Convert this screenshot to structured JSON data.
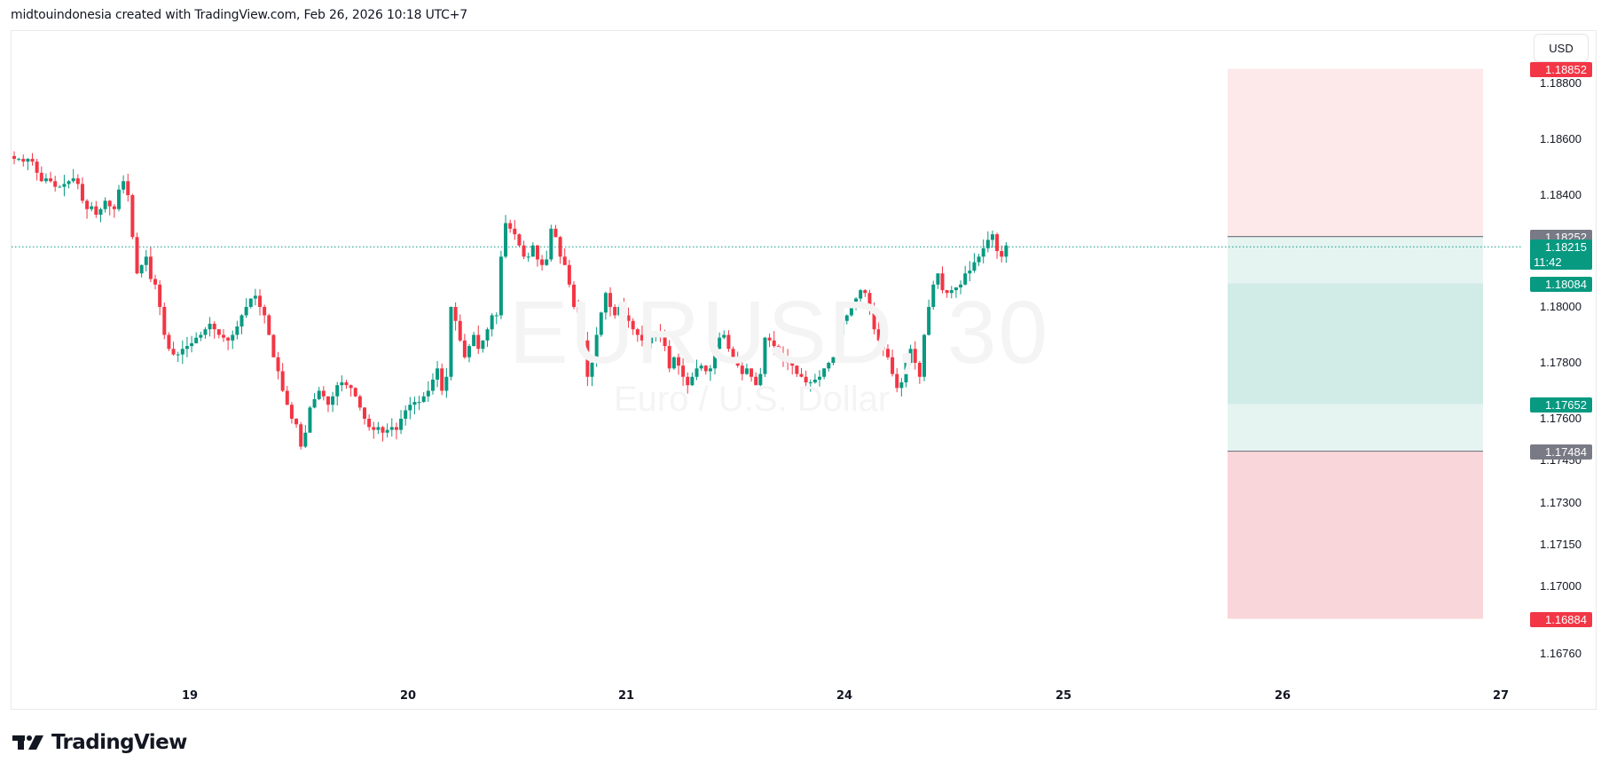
{
  "header": {
    "text": "midtouindonesia created with TradingView.com, Feb 26, 2026 10:18 UTC+7"
  },
  "symbol_watermark": {
    "symbol": "EURUSD, 30",
    "description": "Euro / U.S. Dollar"
  },
  "currency_button": {
    "label": "USD"
  },
  "logo": {
    "text": "TradingView",
    "icon": "tradingview-logo-icon"
  },
  "colors": {
    "up": "#089981",
    "down": "#f23645",
    "target_zone_light": "#e5f4f1",
    "target_zone_dark": "#d1ece7",
    "stop_zone_light": "#fde9ea",
    "stop_zone_dark": "#f9d6d9",
    "level_gray": "#787b86",
    "current_price_line": "#089981"
  },
  "price_axis": {
    "ticks": [
      "1.18800",
      "1.18600",
      "1.18400",
      "1.18000",
      "1.17800",
      "1.17600",
      "1.17450",
      "1.17300",
      "1.17150",
      "1.17000",
      "1.16760"
    ],
    "tags": [
      {
        "name": "upper-stop-tag",
        "value": "1.18852",
        "color": "#f23645"
      },
      {
        "name": "upper-entry-tag",
        "value": "1.18252",
        "color": "#787b86"
      },
      {
        "name": "current-price-tag",
        "value": "1.18215",
        "countdown": "11:42",
        "color": "#089981"
      },
      {
        "name": "upper-target-tag",
        "value": "1.18084",
        "color": "#089981"
      },
      {
        "name": "lower-target-tag",
        "value": "1.17652",
        "color": "#089981"
      },
      {
        "name": "lower-entry-tag",
        "value": "1.17484",
        "color": "#787b86"
      },
      {
        "name": "lower-stop-tag",
        "value": "1.16884",
        "color": "#f23645"
      }
    ]
  },
  "time_axis": {
    "labels": [
      "19",
      "20",
      "21",
      "24",
      "25",
      "26",
      "27"
    ]
  },
  "chart_data": {
    "type": "candlestick",
    "title": "EURUSD, 30",
    "subtitle": "Euro / U.S. Dollar",
    "xlabel": "",
    "ylabel": "USD",
    "ylim": [
      1.1668,
      1.1892
    ],
    "grid": false,
    "timeframe": "30m",
    "x_ticks": [
      "19",
      "20",
      "21",
      "24",
      "25",
      "26",
      "27"
    ],
    "current_price": 1.18215,
    "position_tool": {
      "upper_stop": 1.18852,
      "upper_entry": 1.18252,
      "upper_target": 1.18084,
      "lower_target": 1.17652,
      "lower_entry": 1.17484,
      "lower_stop": 1.16884
    },
    "close_path": [
      1.1853,
      1.1853,
      1.1852,
      1.1853,
      1.1852,
      1.1848,
      1.1845,
      1.1846,
      1.1845,
      1.1843,
      1.1843,
      1.1844,
      1.1845,
      1.1846,
      1.1844,
      1.1838,
      1.1835,
      1.1836,
      1.1833,
      1.1835,
      1.1838,
      1.1836,
      1.1835,
      1.1842,
      1.1845,
      1.184,
      1.1825,
      1.1812,
      1.1815,
      1.1818,
      1.181,
      1.1808,
      1.18,
      1.179,
      1.1785,
      1.1783,
      1.1783,
      1.1785,
      1.1786,
      1.1787,
      1.1789,
      1.179,
      1.1792,
      1.1794,
      1.1792,
      1.179,
      1.1789,
      1.1788,
      1.179,
      1.1793,
      1.1797,
      1.18,
      1.1803,
      1.1804,
      1.18,
      1.1797,
      1.179,
      1.1782,
      1.1777,
      1.177,
      1.1765,
      1.176,
      1.1758,
      1.175,
      1.1755,
      1.1764,
      1.1767,
      1.177,
      1.1768,
      1.1765,
      1.1768,
      1.1772,
      1.1773,
      1.1772,
      1.1771,
      1.1768,
      1.1764,
      1.176,
      1.1757,
      1.1756,
      1.1757,
      1.1755,
      1.1756,
      1.1757,
      1.1756,
      1.176,
      1.1763,
      1.1765,
      1.1766,
      1.1766,
      1.1768,
      1.177,
      1.1774,
      1.1778,
      1.177,
      1.1775,
      1.18,
      1.1795,
      1.1788,
      1.1782,
      1.1786,
      1.179,
      1.1785,
      1.1788,
      1.1792,
      1.1797,
      1.1797,
      1.1818,
      1.183,
      1.1828,
      1.1826,
      1.1822,
      1.1818,
      1.1818,
      1.1822,
      1.1817,
      1.1815,
      1.1817,
      1.1828,
      1.1825,
      1.1818,
      1.1815,
      1.1808,
      1.18,
      1.1798,
      1.1788,
      1.1775,
      1.178,
      1.179,
      1.1798,
      1.1805,
      1.18,
      1.1797,
      1.18,
      1.1797,
      1.1795,
      1.1792,
      1.179,
      1.1788,
      1.1787,
      1.1789,
      1.1791,
      1.179,
      1.1786,
      1.1778,
      1.1782,
      1.1779,
      1.1775,
      1.1772,
      1.1775,
      1.1778,
      1.1779,
      1.1777,
      1.1778,
      1.1785,
      1.1789,
      1.179,
      1.1785,
      1.1782,
      1.1779,
      1.1776,
      1.1778,
      1.1775,
      1.1772,
      1.1776,
      1.1789,
      1.1788,
      1.1786,
      1.1783,
      1.1782,
      1.178,
      1.1779,
      1.1776,
      1.1775,
      1.1773,
      1.1773,
      1.1774,
      1.1775,
      1.1778,
      1.178,
      1.1782,
      1.179,
      1.1795,
      1.1797,
      1.18,
      1.1803,
      1.1806,
      1.1805,
      1.18,
      1.1792,
      1.1788,
      1.1785,
      1.1782,
      1.1776,
      1.1771,
      1.1773,
      1.178,
      1.1785,
      1.178,
      1.1775,
      1.179,
      1.18,
      1.1808,
      1.1812,
      1.1806,
      1.1805,
      1.1806,
      1.1807,
      1.1808,
      1.1812,
      1.1813,
      1.1816,
      1.1818,
      1.1821,
      1.1824,
      1.1826,
      1.182,
      1.1818,
      1.1822
    ]
  }
}
